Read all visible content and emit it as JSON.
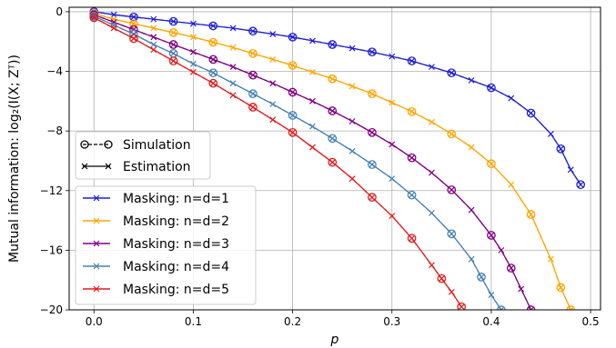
{
  "chart_data": {
    "type": "line",
    "xlabel": "p",
    "ylabel": "Mutual information: log₂(I(X; Zᵀ))",
    "xlim": [
      -0.025,
      0.51
    ],
    "ylim": [
      -20,
      0.3
    ],
    "xticks": [
      0.0,
      0.1,
      0.2,
      0.3,
      0.4,
      0.5
    ],
    "xtick_labels": [
      "0.0",
      "0.1",
      "0.2",
      "0.3",
      "0.4",
      "0.5"
    ],
    "yticks": [
      0,
      -4,
      -8,
      -12,
      -16,
      -20
    ],
    "ytick_labels": [
      "0",
      "−4",
      "−8",
      "−12",
      "−16",
      "−20"
    ],
    "grid": true,
    "legend_styles": {
      "position": "center-left",
      "entries": [
        {
          "label": "Simulation",
          "style": "dashed-circle"
        },
        {
          "label": "Estimation",
          "style": "solid-x"
        }
      ]
    },
    "legend_series": {
      "position": "lower-left"
    },
    "series": [
      {
        "name": "Masking: n=d=1",
        "color": "#1f1fd6",
        "x": [
          0.0,
          0.02,
          0.04,
          0.06,
          0.08,
          0.1,
          0.12,
          0.14,
          0.16,
          0.18,
          0.2,
          0.22,
          0.24,
          0.26,
          0.28,
          0.3,
          0.32,
          0.34,
          0.36,
          0.38,
          0.4,
          0.42,
          0.44,
          0.46,
          0.47,
          0.48,
          0.49
        ],
        "y": [
          0.0,
          -0.2,
          -0.35,
          -0.5,
          -0.65,
          -0.8,
          -0.95,
          -1.1,
          -1.3,
          -1.5,
          -1.7,
          -1.95,
          -2.2,
          -2.45,
          -2.7,
          -3.0,
          -3.3,
          -3.7,
          -4.1,
          -4.6,
          -5.1,
          -5.8,
          -6.8,
          -8.2,
          -9.2,
          -10.6,
          -11.6
        ]
      },
      {
        "name": "Masking: n=d=2",
        "color": "#ffa500",
        "x": [
          0.0,
          0.02,
          0.04,
          0.06,
          0.08,
          0.1,
          0.12,
          0.14,
          0.16,
          0.18,
          0.2,
          0.22,
          0.24,
          0.26,
          0.28,
          0.3,
          0.32,
          0.34,
          0.36,
          0.38,
          0.4,
          0.42,
          0.44,
          0.46,
          0.47,
          0.48
        ],
        "y": [
          -0.1,
          -0.5,
          -0.8,
          -1.1,
          -1.4,
          -1.7,
          -2.05,
          -2.4,
          -2.8,
          -3.2,
          -3.6,
          -4.05,
          -4.5,
          -5.0,
          -5.5,
          -6.1,
          -6.7,
          -7.4,
          -8.2,
          -9.1,
          -10.2,
          -11.6,
          -13.6,
          -16.6,
          -18.5,
          -20.0
        ]
      },
      {
        "name": "Masking: n=d=3",
        "color": "#800080",
        "x": [
          0.0,
          0.02,
          0.04,
          0.06,
          0.08,
          0.1,
          0.12,
          0.14,
          0.16,
          0.18,
          0.2,
          0.22,
          0.24,
          0.26,
          0.28,
          0.3,
          0.32,
          0.34,
          0.36,
          0.38,
          0.4,
          0.41,
          0.42,
          0.43,
          0.44
        ],
        "y": [
          -0.2,
          -0.7,
          -1.2,
          -1.7,
          -2.2,
          -2.7,
          -3.2,
          -3.7,
          -4.25,
          -4.8,
          -5.4,
          -6.0,
          -6.65,
          -7.35,
          -8.1,
          -8.9,
          -9.8,
          -10.8,
          -11.95,
          -13.3,
          -15.0,
          -16.0,
          -17.2,
          -18.6,
          -20.0
        ]
      },
      {
        "name": "Masking: n=d=4",
        "color": "#4682b4",
        "x": [
          0.0,
          0.02,
          0.04,
          0.06,
          0.08,
          0.1,
          0.12,
          0.14,
          0.16,
          0.18,
          0.2,
          0.22,
          0.24,
          0.26,
          0.28,
          0.3,
          0.32,
          0.34,
          0.36,
          0.38,
          0.39,
          0.4,
          0.41
        ],
        "y": [
          -0.3,
          -0.9,
          -1.5,
          -2.2,
          -2.8,
          -3.5,
          -4.1,
          -4.8,
          -5.5,
          -6.2,
          -6.95,
          -7.7,
          -8.5,
          -9.35,
          -10.25,
          -11.2,
          -12.3,
          -13.5,
          -14.9,
          -16.6,
          -17.8,
          -19.0,
          -20.0
        ]
      },
      {
        "name": "Masking: n=d=5",
        "color": "#e41a1c",
        "x": [
          0.0,
          0.02,
          0.04,
          0.06,
          0.08,
          0.1,
          0.12,
          0.14,
          0.16,
          0.18,
          0.2,
          0.22,
          0.24,
          0.26,
          0.28,
          0.3,
          0.32,
          0.34,
          0.35,
          0.36,
          0.37
        ],
        "y": [
          -0.4,
          -1.1,
          -1.8,
          -2.55,
          -3.3,
          -4.05,
          -4.8,
          -5.6,
          -6.4,
          -7.25,
          -8.1,
          -9.1,
          -10.1,
          -11.2,
          -12.45,
          -13.7,
          -15.2,
          -17.0,
          -17.9,
          -18.8,
          -19.8
        ]
      }
    ],
    "simulation_markers": "open circles on every other point of each series, joined by dashed line"
  }
}
